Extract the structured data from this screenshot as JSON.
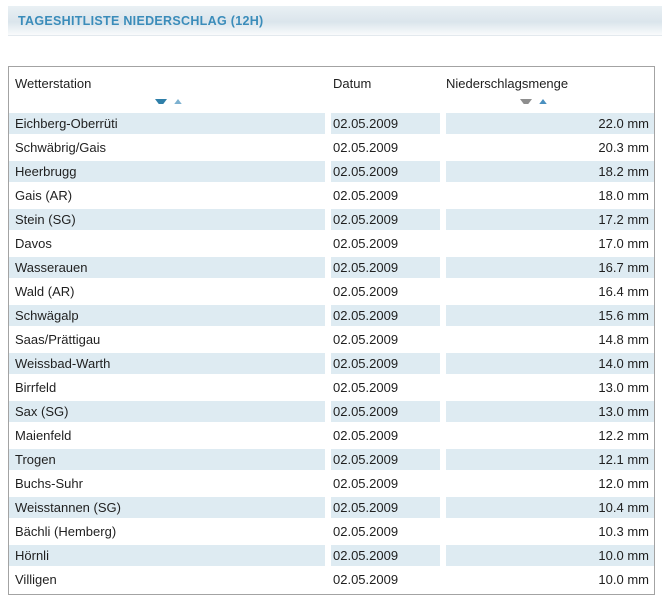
{
  "header": {
    "title": "TAGESHITLISTE NIEDERSCHLAG (12H)"
  },
  "table": {
    "columns": {
      "station": {
        "label": "Wetterstation"
      },
      "date": {
        "label": "Datum"
      },
      "amount": {
        "label": "Niederschlagsmenge"
      }
    },
    "rows": [
      {
        "station": "Eichberg-Oberrüti",
        "date": "02.05.2009",
        "amount": "22.0 mm"
      },
      {
        "station": "Schwäbrig/Gais",
        "date": "02.05.2009",
        "amount": "20.3 mm"
      },
      {
        "station": "Heerbrugg",
        "date": "02.05.2009",
        "amount": "18.2 mm"
      },
      {
        "station": "Gais (AR)",
        "date": "02.05.2009",
        "amount": "18.0 mm"
      },
      {
        "station": "Stein (SG)",
        "date": "02.05.2009",
        "amount": "17.2 mm"
      },
      {
        "station": "Davos",
        "date": "02.05.2009",
        "amount": "17.0 mm"
      },
      {
        "station": "Wasserauen",
        "date": "02.05.2009",
        "amount": "16.7 mm"
      },
      {
        "station": "Wald (AR)",
        "date": "02.05.2009",
        "amount": "16.4 mm"
      },
      {
        "station": "Schwägalp",
        "date": "02.05.2009",
        "amount": "15.6 mm"
      },
      {
        "station": "Saas/Prättigau",
        "date": "02.05.2009",
        "amount": "14.8 mm"
      },
      {
        "station": "Weissbad-Warth",
        "date": "02.05.2009",
        "amount": "14.0 mm"
      },
      {
        "station": "Birrfeld",
        "date": "02.05.2009",
        "amount": "13.0 mm"
      },
      {
        "station": "Sax (SG)",
        "date": "02.05.2009",
        "amount": "13.0 mm"
      },
      {
        "station": "Maienfeld",
        "date": "02.05.2009",
        "amount": "12.2 mm"
      },
      {
        "station": "Trogen",
        "date": "02.05.2009",
        "amount": "12.1 mm"
      },
      {
        "station": "Buchs-Suhr",
        "date": "02.05.2009",
        "amount": "12.0 mm"
      },
      {
        "station": "Weisstannen (SG)",
        "date": "02.05.2009",
        "amount": "10.4 mm"
      },
      {
        "station": "Bächli (Hemberg)",
        "date": "02.05.2009",
        "amount": "10.3 mm"
      },
      {
        "station": "Hörnli",
        "date": "02.05.2009",
        "amount": "10.0 mm"
      },
      {
        "station": "Villigen",
        "date": "02.05.2009",
        "amount": "10.0 mm"
      }
    ]
  },
  "colors": {
    "title_text": "#3a8cba",
    "header_bar_top": "#e9f0f4",
    "header_bar_mid": "#dbe5ec",
    "header_bar_bottom": "#f9fbfc",
    "table_border": "#a3a3a3",
    "row_stripe": "#deebf2",
    "sort_arrow_blue_dark": "#2f7fa9",
    "sort_arrow_blue_light": "#7db1d0",
    "sort_arrow_gray": "#8e8e8e",
    "sort_arrow_blue": "#4a90c0"
  }
}
